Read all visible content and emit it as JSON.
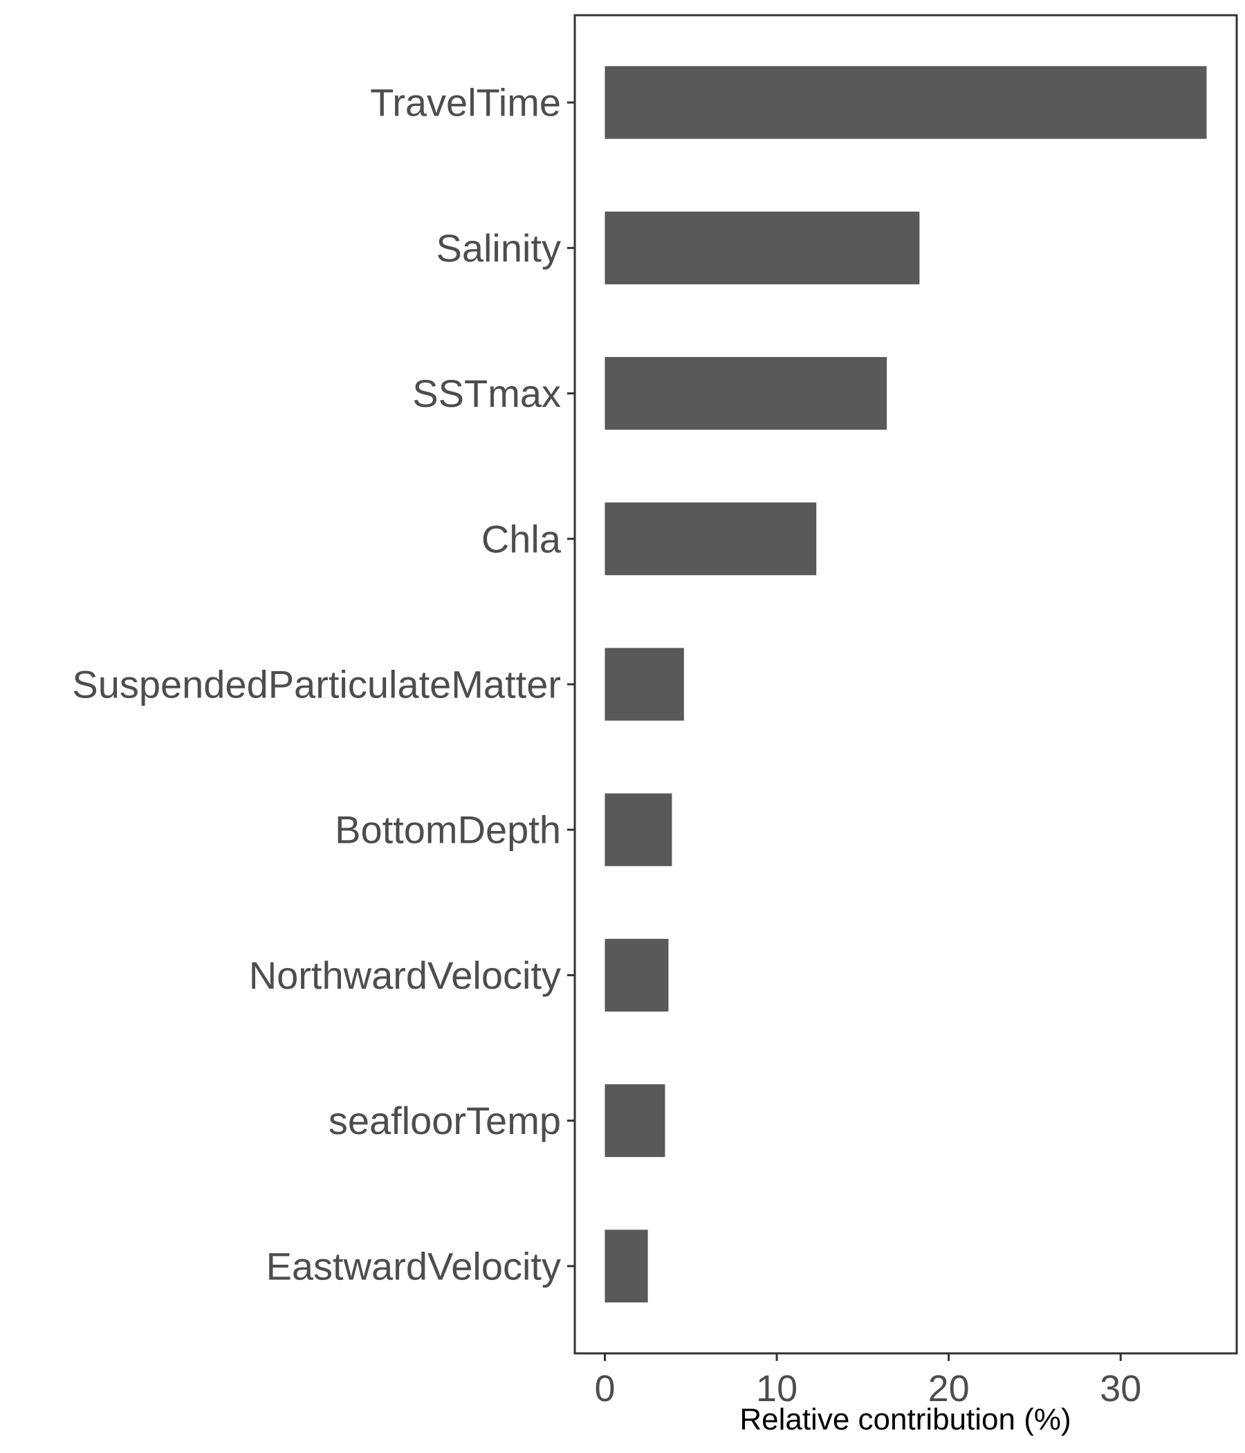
{
  "chart_data": {
    "type": "bar",
    "orientation": "horizontal",
    "categories": [
      "TravelTime",
      "Salinity",
      "SSTmax",
      "Chla",
      "SuspendedParticulateMatter",
      "BottomDepth",
      "NorthwardVelocity",
      "seafloorTemp",
      "EastwardVelocity"
    ],
    "values": [
      35.0,
      18.3,
      16.4,
      12.3,
      4.6,
      3.9,
      3.7,
      3.5,
      2.5
    ],
    "title": "",
    "xlabel": "Relative contribution (%)",
    "ylabel": "",
    "xlim": [
      -1.75,
      36.75
    ],
    "xticks": [
      0,
      10,
      20,
      30
    ],
    "bar_color": "#595959",
    "grid": false,
    "legend": "none"
  }
}
